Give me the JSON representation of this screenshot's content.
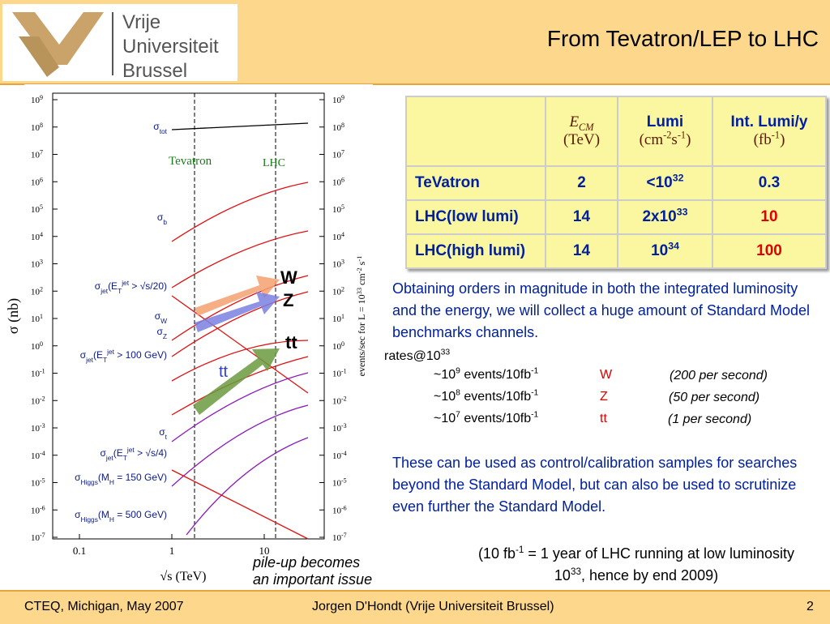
{
  "header": {
    "title": "From Tevatron/LEP to LHC",
    "logo": [
      "Vrije",
      "Universiteit",
      "Brussel"
    ]
  },
  "plot": {
    "y_label": "σ (nb)",
    "x_label": "√s (TeV)",
    "x_ticks": [
      "0.1",
      "1",
      "10"
    ],
    "y2_label": [
      {
        "t": "events/sec  for  L = 10"
      },
      {
        "sup": "33"
      },
      {
        "t": " cm"
      },
      {
        "sup": "-2"
      },
      {
        "t": " s"
      },
      {
        "sup": "-1"
      }
    ],
    "y_ticks": [
      {
        "base": "10",
        "sup": "9"
      },
      {
        "base": "10",
        "sup": "8"
      },
      {
        "base": "10",
        "sup": "7"
      },
      {
        "base": "10",
        "sup": "6"
      },
      {
        "base": "10",
        "sup": "5"
      },
      {
        "base": "10",
        "sup": "4"
      },
      {
        "base": "10",
        "sup": "3"
      },
      {
        "base": "10",
        "sup": "2"
      },
      {
        "base": "10",
        "sup": "1"
      },
      {
        "base": "10",
        "sup": "0"
      },
      {
        "base": "10",
        "sup": "-1"
      },
      {
        "base": "10",
        "sup": "-2"
      },
      {
        "base": "10",
        "sup": "-3"
      },
      {
        "base": "10",
        "sup": "-4"
      },
      {
        "base": "10",
        "sup": "-5"
      },
      {
        "base": "10",
        "sup": "-6"
      },
      {
        "base": "10",
        "sup": "-7"
      }
    ],
    "y2_ticks": [
      {
        "base": "10",
        "sup": "9"
      },
      {
        "base": "10",
        "sup": "8"
      },
      {
        "base": "10",
        "sup": "7"
      },
      {
        "base": "10",
        "sup": "6"
      },
      {
        "base": "10",
        "sup": "5"
      },
      {
        "base": "10",
        "sup": "4"
      },
      {
        "base": "10",
        "sup": "3"
      },
      {
        "base": "10",
        "sup": "2"
      },
      {
        "base": "10",
        "sup": "1"
      },
      {
        "base": "10",
        "sup": "0"
      },
      {
        "base": "10",
        "sup": "-1"
      },
      {
        "base": "10",
        "sup": "-2"
      },
      {
        "base": "10",
        "sup": "-3"
      },
      {
        "base": "10",
        "sup": "-4"
      },
      {
        "base": "10",
        "sup": "-5"
      },
      {
        "base": "10",
        "sup": "-6"
      },
      {
        "base": "10",
        "sup": "-7"
      }
    ],
    "regions": [
      "Tevatron",
      "LHC"
    ],
    "curve_labels": [
      [
        {
          "t": "σ"
        },
        {
          "sub": "tot"
        }
      ],
      [
        {
          "t": "σ"
        },
        {
          "sub": "b"
        }
      ],
      [
        {
          "t": "σ"
        },
        {
          "sub": "jet"
        },
        {
          "t": "(E"
        },
        {
          "sub": "T"
        },
        {
          "sup": "jet"
        },
        {
          "t": " > √s/20)"
        }
      ],
      [
        {
          "t": "σ"
        },
        {
          "sub": "W"
        }
      ],
      [
        {
          "t": "σ"
        },
        {
          "sub": "Z"
        }
      ],
      [
        {
          "t": "σ"
        },
        {
          "sub": "jet"
        },
        {
          "t": "(E"
        },
        {
          "sub": "T"
        },
        {
          "sup": "jet"
        },
        {
          "t": " > 100 GeV)"
        }
      ],
      [
        {
          "t": "σ"
        },
        {
          "sub": "t"
        }
      ],
      [
        {
          "t": "σ"
        },
        {
          "sub": "jet"
        },
        {
          "t": "(E"
        },
        {
          "sub": "T"
        },
        {
          "sup": "jet"
        },
        {
          "t": " > √s/4)"
        }
      ],
      [
        {
          "t": "σ"
        },
        {
          "sub": "Higgs"
        },
        {
          "t": "(M"
        },
        {
          "sub": "H"
        },
        {
          "t": " = 150 GeV)"
        }
      ],
      [
        {
          "t": "σ"
        },
        {
          "sub": "Higgs"
        },
        {
          "t": "(M"
        },
        {
          "sub": "H"
        },
        {
          "t": " = 500 GeV)"
        }
      ]
    ],
    "arrow_labels": [
      "W",
      "Z",
      "tt",
      "tt"
    ]
  },
  "table": {
    "header": [
      [
        {
          "t": "E"
        },
        {
          "sub": "CM"
        },
        {
          "br": "(TeV)"
        }
      ],
      [
        {
          "t": "Lumi"
        },
        {
          "br": "(cm"
        },
        {
          "sup": "-2"
        },
        {
          "t": "s"
        },
        {
          "sup": "-1"
        },
        {
          "t": ")"
        }
      ],
      [
        {
          "t": "Int. Lumi/y"
        },
        {
          "br": "(fb"
        },
        {
          "sup": "-1"
        },
        {
          "t": ")"
        }
      ]
    ],
    "rows": [
      [
        [
          {
            "t": "TeVatron"
          }
        ],
        [
          {
            "t": "2"
          }
        ],
        [
          {
            "t": "<10"
          },
          {
            "sup": "32"
          }
        ],
        [
          {
            "t": "0.3"
          }
        ]
      ],
      [
        [
          {
            "t": "LHC(low lumi)"
          }
        ],
        [
          {
            "t": "14"
          }
        ],
        [
          {
            "t": "2x10"
          },
          {
            "sup": "33"
          }
        ],
        [
          {
            "t": "10"
          }
        ]
      ],
      [
        [
          {
            "t": "LHC(high lumi)"
          }
        ],
        [
          {
            "t": "14"
          }
        ],
        [
          {
            "t": "10"
          },
          {
            "sup": "34"
          }
        ],
        [
          {
            "t": "100"
          }
        ]
      ]
    ]
  },
  "body": {
    "intro": "Obtaining orders in magnitude in both the integrated luminosity and the energy, we will collect a huge amount of Standard Model benchmarks channels.",
    "rates_title": [
      {
        "t": "rates@10"
      },
      {
        "sup": "33"
      }
    ],
    "rates": [
      {
        "count": [
          {
            "t": "~10"
          },
          {
            "sup": "9"
          },
          {
            "t": " events/10fb"
          },
          {
            "sup": "-1"
          }
        ],
        "channel": "W",
        "rate": "(200 per second)"
      },
      {
        "count": [
          {
            "t": "~10"
          },
          {
            "sup": "8"
          },
          {
            "t": " events/10fb"
          },
          {
            "sup": "-1"
          }
        ],
        "channel": "Z",
        "rate": "(50 per second)"
      },
      {
        "count": [
          {
            "t": "~10"
          },
          {
            "sup": "7"
          },
          {
            "t": " events/10fb"
          },
          {
            "sup": "-1"
          }
        ],
        "channel": "tt",
        "rate": "(1 per second)"
      }
    ],
    "usage": "These can be used as control/calibration samples for searches beyond the Standard Model, but can also be used to scrutinize even further the Standard Model.",
    "note": [
      {
        "t": "(10 fb"
      },
      {
        "sup": "-1"
      },
      {
        "t": " = 1 year of LHC running at low luminosity 10"
      },
      {
        "sup": "33"
      },
      {
        "t": ", hence by end 2009)"
      }
    ],
    "pileup": [
      "pile-up becomes",
      "an important issue"
    ]
  },
  "footer": {
    "left": "CTEQ, Michigan, May 2007",
    "center": "Jorgen D'Hondt  (Vrije Universiteit Brussel)",
    "page": "2"
  }
}
